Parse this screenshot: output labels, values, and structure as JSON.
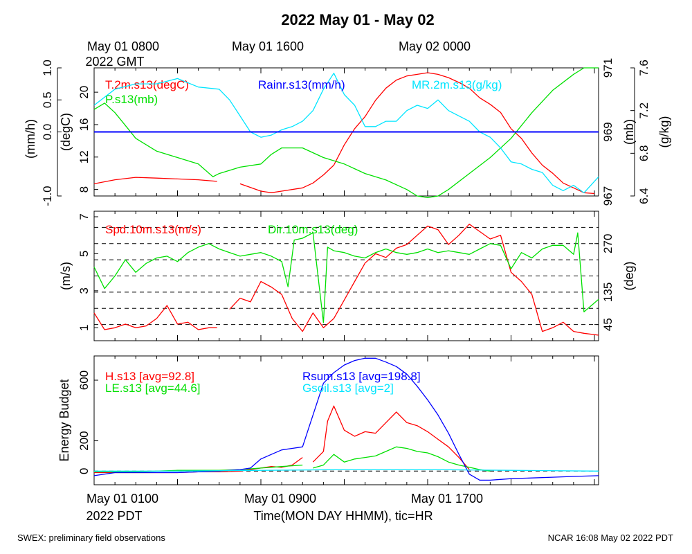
{
  "title": "2022 May 01 - May 02",
  "top_time_labels": [
    {
      "line1": "May 01 0800",
      "line2": "2022 GMT",
      "t": 0
    },
    {
      "line1": "May 01 1600",
      "line2": "",
      "t": 8
    },
    {
      "line1": "May 02 0000",
      "line2": "",
      "t": 16
    }
  ],
  "bottom_time_labels": [
    {
      "line1": "May 01 0100",
      "line2": "2022 PDT",
      "t": 0
    },
    {
      "line1": "May 01 0900",
      "line2": "",
      "t": 8
    },
    {
      "line1": "May 01 1700",
      "line2": "",
      "t": 16
    }
  ],
  "xlabel": "Time(MON DAY HHMM), tic=HR",
  "footer_left": "SWEX: preliminary field observations",
  "footer_right": "NCAR 16:08 May 02 2022 PDT",
  "colors": {
    "red": "#ff0000",
    "green": "#00e000",
    "blue": "#0000ff",
    "cyan": "#00e5ff",
    "black": "#000000"
  },
  "chart_data": [
    {
      "type": "line",
      "panel": "thermo",
      "x_unit": "hours since May 01 0100 PDT",
      "xlim": [
        0,
        24.2
      ],
      "axes": [
        {
          "side": "left-outer",
          "label": "(mm/h)",
          "ticks": [
            "-1.0",
            "0.0",
            "0.5",
            "1.0"
          ],
          "tick_values": [
            -1.0,
            0.0,
            0.5,
            1.0
          ],
          "ylim": [
            -1.0,
            1.0
          ]
        },
        {
          "side": "left-inner",
          "label": "(degC)",
          "ticks": [
            "8",
            "12",
            "16",
            "20"
          ],
          "tick_values": [
            8,
            12,
            16,
            20
          ],
          "ylim": [
            7.2,
            23.0
          ]
        },
        {
          "side": "right-inner",
          "label": "(mb)",
          "ticks": [
            "967",
            "969",
            "971"
          ],
          "tick_values": [
            967,
            969,
            971
          ],
          "ylim": [
            967.0,
            971.0
          ]
        },
        {
          "side": "right-outer",
          "label": "(g/kg)",
          "ticks": [
            "6.4",
            "6.8",
            "7.2",
            "7.6"
          ],
          "tick_values": [
            6.4,
            6.8,
            7.2,
            7.6
          ],
          "ylim": [
            6.4,
            7.6
          ]
        }
      ],
      "series": [
        {
          "name": "T.2m.s13(degC)",
          "color": "red",
          "axis": 1,
          "x": [
            0,
            1,
            2,
            3,
            4,
            5,
            5.9,
            6,
            7,
            8,
            8.5,
            9,
            10,
            10.5,
            11,
            11.5,
            12,
            12.5,
            13,
            13.5,
            14,
            14.5,
            15,
            15.5,
            16,
            16.5,
            17,
            17.5,
            18,
            18.5,
            19,
            19.5,
            20,
            20.5,
            21,
            21.5,
            22,
            22.5,
            23,
            23.5,
            24
          ],
          "y": [
            8.7,
            9.2,
            9.5,
            9.4,
            9.3,
            9.2,
            9.0,
            null,
            8.7,
            7.8,
            7.6,
            7.8,
            8.2,
            8.8,
            9.8,
            11.0,
            13.5,
            15.5,
            17.0,
            19.0,
            20.5,
            21.5,
            22.0,
            22.2,
            22.4,
            22.2,
            21.8,
            21.2,
            20.5,
            19.3,
            18.5,
            17.5,
            15.5,
            14.3,
            12.5,
            11.0,
            10.0,
            8.8,
            8.2,
            7.6,
            7.5
          ]
        },
        {
          "name": "P.s13(mb)",
          "color": "green",
          "axis": 2,
          "x": [
            0,
            0.5,
            1,
            1.5,
            2,
            3,
            4,
            5,
            5.7,
            6,
            7,
            8,
            8.5,
            9,
            10,
            11,
            12,
            13,
            14,
            15,
            15.5,
            16,
            16.5,
            17,
            18,
            19,
            20,
            21,
            22,
            23,
            23.5,
            24.2
          ],
          "y": [
            969.7,
            969.9,
            969.6,
            969.2,
            968.8,
            968.4,
            968.2,
            968.0,
            967.6,
            967.7,
            967.9,
            968.0,
            968.3,
            968.5,
            968.5,
            968.2,
            968.0,
            967.7,
            967.5,
            967.2,
            967.0,
            966.95,
            967.0,
            967.2,
            967.7,
            968.2,
            968.8,
            969.6,
            970.3,
            970.8,
            971.0,
            971.0
          ]
        },
        {
          "name": "MR.2m.s13(g/kg)",
          "color": "cyan",
          "axis": 3,
          "x": [
            0,
            1,
            2,
            3,
            4,
            5,
            6,
            6.5,
            7,
            7.5,
            8,
            8.5,
            9,
            9.5,
            10,
            10.5,
            11,
            11.5,
            12,
            12.5,
            13,
            13.5,
            14,
            14.5,
            15,
            15.5,
            16,
            16.5,
            17,
            17.5,
            18,
            18.5,
            19,
            19.5,
            20,
            20.5,
            21,
            21.5,
            22,
            22.5,
            23,
            23.5,
            24.2
          ],
          "y": [
            7.25,
            7.4,
            7.45,
            7.45,
            7.5,
            7.42,
            7.4,
            7.3,
            7.15,
            7.0,
            6.95,
            6.97,
            7.02,
            7.05,
            7.1,
            7.2,
            7.4,
            7.55,
            7.35,
            7.25,
            7.05,
            7.05,
            7.1,
            7.1,
            7.2,
            7.25,
            7.22,
            7.3,
            7.2,
            7.15,
            7.1,
            7.0,
            6.95,
            6.85,
            6.72,
            6.7,
            6.65,
            6.62,
            6.5,
            6.45,
            6.5,
            6.43,
            6.58
          ]
        },
        {
          "name": "Rainr.s13(mm/h)",
          "color": "blue",
          "axis": 0,
          "x": [
            0,
            24.2
          ],
          "y": [
            0,
            0
          ]
        }
      ]
    },
    {
      "type": "line",
      "panel": "wind",
      "x_unit": "hours since May 01 0100 PDT",
      "xlim": [
        0,
        24.2
      ],
      "axes": [
        {
          "side": "left",
          "label": "(m/s)",
          "ticks": [
            "1",
            "3",
            "5",
            "7"
          ],
          "tick_values": [
            1,
            3,
            5,
            7
          ],
          "ylim": [
            0.3,
            7.3
          ]
        },
        {
          "side": "right",
          "label": "(deg)",
          "ticks": [
            "45",
            "135",
            "270"
          ],
          "tick_values": [
            45,
            135,
            270
          ],
          "ylim": [
            0,
            360
          ]
        }
      ],
      "reference_lines_deg": [
        45,
        90,
        135,
        180,
        225,
        270,
        315
      ],
      "series": [
        {
          "name": "Spd.10m.s13(m/s)",
          "color": "red",
          "axis": 0,
          "x": [
            0,
            0.5,
            1,
            1.5,
            2,
            2.5,
            3,
            3.5,
            4,
            4.5,
            5,
            5.5,
            5.9,
            6,
            6.5,
            7,
            7.5,
            8,
            8.5,
            9,
            9.5,
            10,
            10.5,
            11,
            11.5,
            12,
            12.5,
            13,
            13.5,
            14,
            14.5,
            15,
            15.5,
            16,
            16.5,
            17,
            17.5,
            18,
            18.5,
            19,
            19.5,
            20,
            20.5,
            21,
            21.5,
            22,
            22.5,
            23,
            23.5,
            24.2
          ],
          "y": [
            1.8,
            0.9,
            1.0,
            1.2,
            1.0,
            1.1,
            1.5,
            2.2,
            1.2,
            1.3,
            0.9,
            1.0,
            1.0,
            null,
            2.0,
            2.6,
            2.4,
            3.5,
            3.2,
            2.8,
            1.5,
            0.8,
            1.8,
            1.0,
            1.5,
            2.5,
            3.5,
            4.5,
            5.0,
            4.8,
            5.3,
            5.5,
            6.0,
            6.5,
            6.3,
            5.5,
            6.0,
            6.6,
            6.2,
            5.8,
            6.0,
            4.0,
            3.5,
            2.8,
            0.8,
            1.0,
            1.3,
            0.8,
            0.7,
            0.6
          ]
        },
        {
          "name": "Dir.10m.s13(deg)",
          "color": "green",
          "axis": 1,
          "x": [
            0,
            0.5,
            1,
            1.5,
            2,
            2.5,
            3,
            3.5,
            4,
            4.5,
            5,
            5.5,
            6,
            6.5,
            7,
            7.5,
            8,
            8.5,
            9,
            9.3,
            9.6,
            10,
            10.5,
            11,
            11.2,
            11.5,
            12,
            12.5,
            13,
            13.5,
            14,
            14.5,
            15,
            15.5,
            16,
            16.5,
            17,
            17.5,
            18,
            18.5,
            19,
            19.5,
            20,
            20.5,
            21,
            21.5,
            22,
            22.5,
            23,
            23.2,
            23.5,
            24.2
          ],
          "y": [
            205,
            145,
            180,
            225,
            190,
            215,
            230,
            235,
            220,
            245,
            260,
            270,
            255,
            245,
            235,
            240,
            245,
            235,
            220,
            150,
            280,
            285,
            300,
            50,
            260,
            250,
            245,
            235,
            230,
            245,
            255,
            245,
            240,
            245,
            255,
            245,
            250,
            245,
            240,
            255,
            270,
            265,
            200,
            245,
            230,
            255,
            265,
            265,
            240,
            300,
            80,
            115
          ]
        }
      ]
    },
    {
      "type": "line",
      "panel": "energy",
      "x_unit": "hours since May 01 0100 PDT",
      "xlim": [
        0,
        24.2
      ],
      "axes": [
        {
          "side": "left",
          "label": "Energy Budget",
          "ticks": [
            "0",
            "200",
            "600"
          ],
          "tick_values": [
            0,
            200,
            600
          ],
          "ylim": [
            -90,
            760
          ]
        }
      ],
      "series": [
        {
          "name": "H.s13 [avg=92.8]",
          "color": "red",
          "x": [
            0,
            1,
            2,
            3,
            4,
            5,
            6,
            7,
            7.5,
            8,
            8.5,
            9,
            9.5,
            10,
            null,
            10.5,
            11,
            11.2,
            11.5,
            12,
            12.5,
            13,
            13.5,
            14,
            14.5,
            15,
            15.5,
            16,
            16.5,
            17,
            17.5,
            18
          ],
          "y": [
            -10,
            -10,
            -10,
            -10,
            -10,
            -5,
            -5,
            0,
            10,
            20,
            30,
            25,
            40,
            90,
            null,
            60,
            130,
            330,
            430,
            270,
            230,
            260,
            250,
            320,
            390,
            320,
            300,
            260,
            210,
            160,
            90,
            10
          ]
        },
        {
          "name": "LE.s13 [avg=44.6]",
          "color": "green",
          "x": [
            0,
            1,
            2,
            3,
            4,
            5,
            6,
            7,
            7.5,
            8,
            8.5,
            9,
            9.5,
            10,
            null,
            10.5,
            11,
            11.5,
            12,
            12.5,
            13,
            13.5,
            14,
            14.5,
            15,
            15.5,
            16,
            16.5,
            17,
            17.5,
            18,
            18.5,
            19
          ],
          "y": [
            -5,
            -5,
            -5,
            0,
            5,
            5,
            5,
            10,
            15,
            20,
            25,
            30,
            35,
            40,
            null,
            20,
            40,
            110,
            60,
            80,
            90,
            100,
            130,
            160,
            150,
            130,
            120,
            95,
            60,
            40,
            25,
            10,
            0
          ]
        },
        {
          "name": "Rsum.s13 [avg=198.8]",
          "color": "blue",
          "x": [
            0,
            1,
            2,
            3,
            4,
            5,
            6,
            6.5,
            7,
            7.5,
            8,
            8.5,
            9,
            9.5,
            10,
            10.5,
            11,
            11.5,
            12,
            12.5,
            13,
            13.5,
            14,
            14.5,
            15,
            15.5,
            16,
            16.5,
            17,
            17.5,
            18,
            18.5,
            19,
            19.5,
            20,
            21,
            22,
            23,
            24.2
          ],
          "y": [
            -30,
            -10,
            -10,
            -10,
            -10,
            -5,
            0,
            5,
            10,
            20,
            80,
            110,
            140,
            150,
            160,
            370,
            580,
            650,
            700,
            730,
            745,
            745,
            720,
            690,
            640,
            560,
            470,
            370,
            250,
            110,
            -20,
            -60,
            -60,
            -55,
            -50,
            -45,
            -40,
            -35,
            -30
          ]
        },
        {
          "name": "Gsoil.s13 [avg=2]",
          "color": "cyan",
          "x": [
            0,
            4,
            8,
            12,
            16,
            20,
            24.2
          ],
          "y": [
            0,
            0,
            5,
            10,
            10,
            5,
            0
          ]
        }
      ]
    }
  ]
}
